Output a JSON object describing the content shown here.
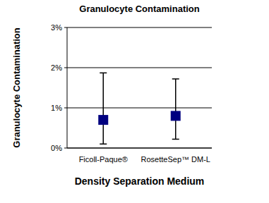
{
  "chart_data": {
    "type": "errorbar",
    "title": "Granulocyte Contamination",
    "x_label": "Density Separation Medium",
    "y_label": "Granulocyte Contamination",
    "categories": [
      "Ficoll-Paque®",
      "RosetteSep™ DM-L"
    ],
    "values": [
      0.7,
      0.8
    ],
    "error_lower": [
      0.6,
      0.58
    ],
    "error_upper": [
      1.17,
      0.92
    ],
    "color": "#000080",
    "marker": "square",
    "ylim": [
      0,
      3
    ],
    "yticks": [
      {
        "value": 0,
        "label": "0%"
      },
      {
        "value": 1,
        "label": "1%"
      },
      {
        "value": 2,
        "label": "2%"
      },
      {
        "value": 3,
        "label": "3%"
      }
    ],
    "grid": true
  }
}
